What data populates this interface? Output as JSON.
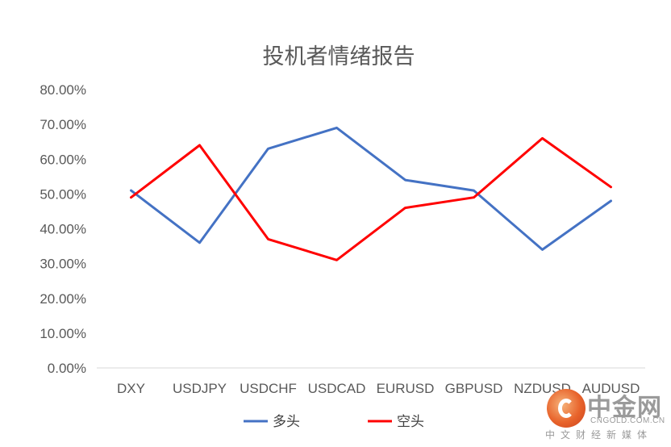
{
  "chart_data": {
    "type": "line",
    "title": "投机者情绪报告",
    "categories": [
      "DXY",
      "USDJPY",
      "USDCHF",
      "USDCAD",
      "EURUSD",
      "GBPUSD",
      "NZDUSD",
      "AUDUSD"
    ],
    "series": [
      {
        "name": "多头",
        "color": "#4472C4",
        "values": [
          51,
          36,
          63,
          69,
          54,
          51,
          34,
          48
        ]
      },
      {
        "name": "空头",
        "color": "#FF0000",
        "values": [
          49,
          64,
          37,
          31,
          46,
          49,
          66,
          52
        ]
      }
    ],
    "ylim": [
      0,
      80
    ],
    "yticks": [
      "0.00%",
      "10.00%",
      "20.00%",
      "30.00%",
      "40.00%",
      "50.00%",
      "60.00%",
      "70.00%",
      "80.00%"
    ],
    "y_unit": "%",
    "grid": false,
    "legend_position": "bottom"
  },
  "watermark": {
    "name": "中金网",
    "domain": "CNGOLD.COM.CN",
    "tagline": "中文财经新媒体"
  }
}
